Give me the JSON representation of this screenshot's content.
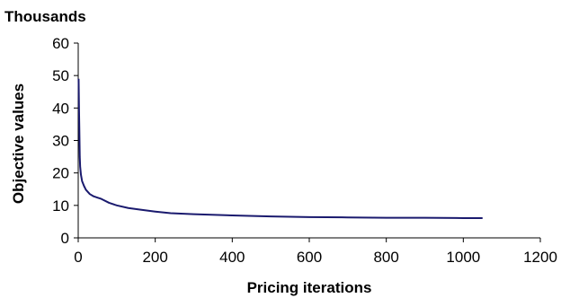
{
  "chart_data": {
    "type": "line",
    "title": "",
    "unit_label": "Thousands",
    "xlabel": "Pricing iterations",
    "ylabel": "Objective values",
    "xlim": [
      0,
      1200
    ],
    "ylim": [
      0,
      60
    ],
    "x_ticks": [
      "0",
      "200",
      "400",
      "600",
      "800",
      "1000",
      "1200"
    ],
    "y_ticks": [
      "0",
      "10",
      "20",
      "30",
      "40",
      "50",
      "60"
    ],
    "grid": false,
    "legend": "none",
    "line_color": "#1a1a6e",
    "series": [
      {
        "x": [
          1,
          2,
          3,
          4,
          5,
          7,
          10,
          15,
          20,
          30,
          40,
          50,
          60,
          80,
          100,
          130,
          160,
          200,
          240,
          300,
          400,
          500,
          600,
          700,
          800,
          900,
          1000,
          1050
        ],
        "values": [
          49,
          40,
          33,
          25,
          22,
          19.5,
          17.5,
          16,
          14.8,
          13.5,
          12.8,
          12.4,
          12.0,
          10.8,
          10.0,
          9.2,
          8.7,
          8.1,
          7.6,
          7.3,
          6.9,
          6.6,
          6.4,
          6.3,
          6.2,
          6.2,
          6.1,
          6.1
        ]
      }
    ]
  }
}
